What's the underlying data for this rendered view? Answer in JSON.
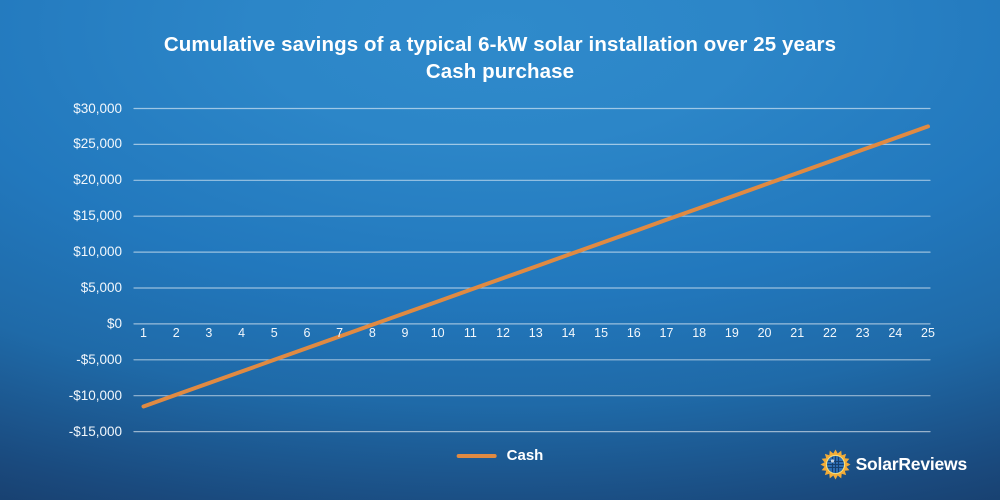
{
  "title": {
    "line1": "Cumulative savings of a typical 6-kW solar installation over 25 years",
    "line2": "Cash purchase"
  },
  "legend": {
    "label": "Cash",
    "color": "#E08A42"
  },
  "logo": {
    "text": "SolarReviews",
    "sun_color": "#F3AC38",
    "globe_color": "#2E6FB5"
  },
  "colors": {
    "line": "#E08A42",
    "gridline": "rgba(255,255,255,0.55)",
    "text": "#F2F7FC",
    "background_top": "#2F8ACB",
    "background_bottom": "#142A4F"
  },
  "chart_data": {
    "type": "line",
    "title": "Cumulative savings of a typical 6-kW solar installation over 25 years",
    "subtitle": "Cash purchase",
    "x": [
      1,
      2,
      3,
      4,
      5,
      6,
      7,
      8,
      9,
      10,
      11,
      12,
      13,
      14,
      15,
      16,
      17,
      18,
      19,
      20,
      21,
      22,
      23,
      24,
      25
    ],
    "series": [
      {
        "name": "Cash",
        "color": "#E08A42",
        "values": [
          -11500,
          -9875,
          -8250,
          -6625,
          -5000,
          -3375,
          -1750,
          -125,
          1500,
          3125,
          4750,
          6375,
          8000,
          9625,
          11250,
          12875,
          14500,
          16125,
          17750,
          19375,
          21000,
          22625,
          24250,
          25875,
          27500
        ]
      }
    ],
    "ylim": [
      -15000,
      30000
    ],
    "ytick_step": 5000,
    "ytick_labels_top_to_bottom": [
      "$30,000",
      "$25,000",
      "$20,000",
      "$15,000",
      "$10,000",
      "$5,000",
      "$0",
      "-$5,000",
      "-$10,000",
      "-$15,000"
    ],
    "grid": "horizontal",
    "legend_position": "bottom-center"
  }
}
